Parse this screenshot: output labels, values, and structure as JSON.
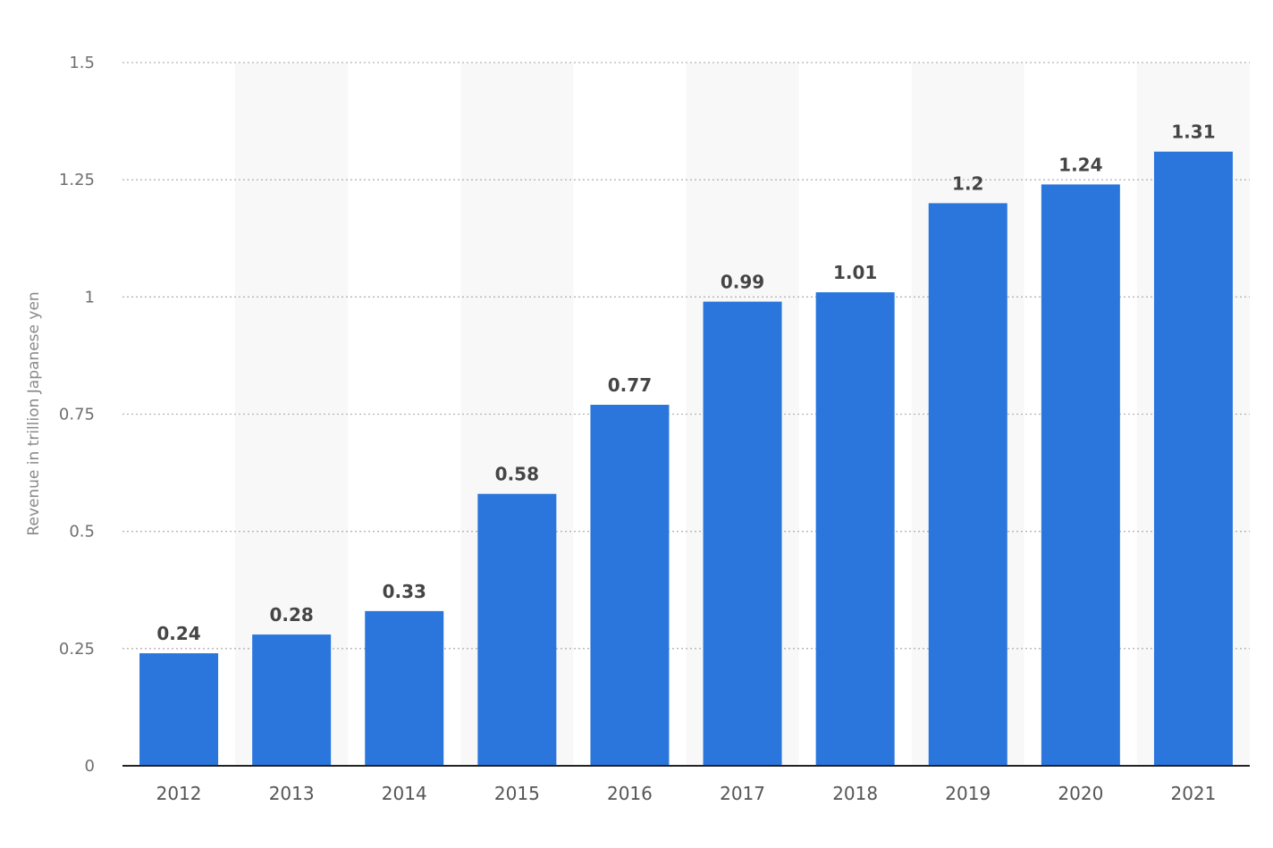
{
  "chart_data": {
    "type": "bar",
    "title": "",
    "xlabel": "",
    "ylabel": "Revenue in trillion Japanese yen",
    "categories": [
      "2012",
      "2013",
      "2014",
      "2015",
      "2016",
      "2017",
      "2018",
      "2019",
      "2020",
      "2021"
    ],
    "values": [
      0.24,
      0.28,
      0.33,
      0.58,
      0.77,
      0.99,
      1.01,
      1.2,
      1.24,
      1.31
    ],
    "value_labels": [
      "0.24",
      "0.28",
      "0.33",
      "0.58",
      "0.77",
      "0.99",
      "1.01",
      "1.2",
      "1.24",
      "1.31"
    ],
    "ylim": [
      0,
      1.5
    ],
    "yticks": [
      0,
      0.25,
      0.5,
      0.75,
      1,
      1.25,
      1.5
    ],
    "ytick_labels": [
      "0",
      "0.25",
      "0.5",
      "0.75",
      "1",
      "1.25",
      "1.5"
    ],
    "grid": true,
    "grid_style": "dotted",
    "alternating_column_bands": true,
    "legend": "none",
    "colors": {
      "bar": "#2a76dd",
      "band": "#f8f8f8",
      "grid": "#b4b4b4",
      "axis": "#222222"
    }
  }
}
